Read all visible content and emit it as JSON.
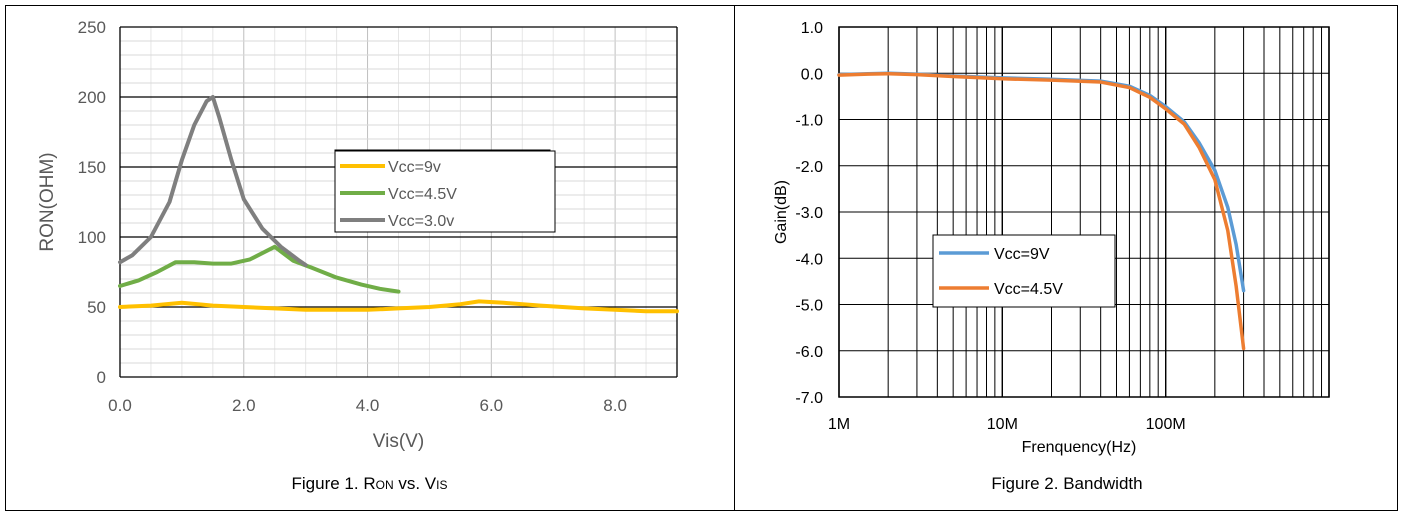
{
  "captions": {
    "fig1": {
      "pre": "Figure 1. R",
      "sub1": "ON",
      "mid": " vs. V",
      "sub2": "IS"
    },
    "fig2": "Figure 2. Bandwidth"
  },
  "chart_data": [
    {
      "type": "line",
      "title": "",
      "xlabel": "Vis(V)",
      "ylabel": "RON(OHM)",
      "xlim": [
        0,
        9
      ],
      "ylim": [
        0,
        250
      ],
      "x_ticks": [
        "0.0",
        "2.0",
        "4.0",
        "6.0",
        "8.0"
      ],
      "y_ticks": [
        "0",
        "50",
        "100",
        "150",
        "200",
        "250"
      ],
      "grid": "on",
      "legend_position": "top-right",
      "series": [
        {
          "name": "Vcc=9v",
          "color": "#FFC000",
          "x": [
            0,
            0.5,
            1.0,
            1.5,
            2.0,
            2.5,
            3.0,
            3.5,
            4.0,
            4.5,
            5.0,
            5.5,
            5.8,
            6.2,
            6.8,
            7.5,
            8.0,
            8.5,
            9.0
          ],
          "y": [
            50,
            51,
            53,
            51,
            50,
            49,
            48,
            48,
            48,
            49,
            50,
            52,
            54,
            53,
            51,
            49,
            48,
            47,
            47
          ]
        },
        {
          "name": "Vcc=4.5V",
          "color": "#70AD47",
          "x": [
            0,
            0.3,
            0.6,
            0.9,
            1.2,
            1.5,
            1.8,
            2.1,
            2.5,
            2.8,
            3.1,
            3.5,
            3.9,
            4.2,
            4.5
          ],
          "y": [
            65,
            69,
            75,
            82,
            82,
            81,
            81,
            84,
            93,
            83,
            78,
            71,
            66,
            63,
            61
          ]
        },
        {
          "name": "Vcc=3.0v",
          "color": "#7F7F7F",
          "x": [
            0,
            0.2,
            0.5,
            0.8,
            1.0,
            1.2,
            1.4,
            1.5,
            1.6,
            1.8,
            2.0,
            2.3,
            2.6,
            2.9,
            3.0
          ],
          "y": [
            82,
            87,
            100,
            125,
            155,
            180,
            197,
            200,
            186,
            155,
            127,
            106,
            93,
            83,
            80
          ]
        }
      ]
    },
    {
      "type": "line",
      "title": "",
      "xlabel": "Frenquency(Hz)",
      "ylabel": "Gain(dB)",
      "xscale": "log",
      "xlim": [
        1000000,
        1000000000
      ],
      "ylim": [
        -7.0,
        1.0
      ],
      "x_ticks": [
        "1M",
        "10M",
        "100M"
      ],
      "y_ticks": [
        "1.0",
        "0.0",
        "-1.0",
        "-2.0",
        "-3.0",
        "-4.0",
        "-5.0",
        "-6.0",
        "-7.0"
      ],
      "grid": "on",
      "legend_position": "bottom-left",
      "series": [
        {
          "name": "Vcc=9V",
          "color": "#5B9BD5",
          "x": [
            1000000,
            1500000,
            2000000,
            3000000,
            5000000,
            10000000,
            20000000,
            40000000,
            60000000,
            80000000,
            100000000,
            130000000,
            160000000,
            200000000,
            240000000,
            270000000,
            300000000
          ],
          "y": [
            -0.03,
            -0.01,
            0.0,
            -0.02,
            -0.06,
            -0.1,
            -0.13,
            -0.17,
            -0.28,
            -0.48,
            -0.72,
            -1.05,
            -1.5,
            -2.1,
            -2.9,
            -3.7,
            -4.7
          ]
        },
        {
          "name": "Vcc=4.5V",
          "color": "#ED7D31",
          "x": [
            1000000,
            1500000,
            2000000,
            3000000,
            5000000,
            10000000,
            20000000,
            40000000,
            60000000,
            80000000,
            100000000,
            130000000,
            160000000,
            200000000,
            240000000,
            270000000,
            300000000
          ],
          "y": [
            -0.04,
            -0.02,
            -0.01,
            -0.03,
            -0.07,
            -0.12,
            -0.15,
            -0.19,
            -0.31,
            -0.52,
            -0.77,
            -1.1,
            -1.6,
            -2.3,
            -3.4,
            -4.6,
            -5.95
          ]
        }
      ]
    }
  ]
}
